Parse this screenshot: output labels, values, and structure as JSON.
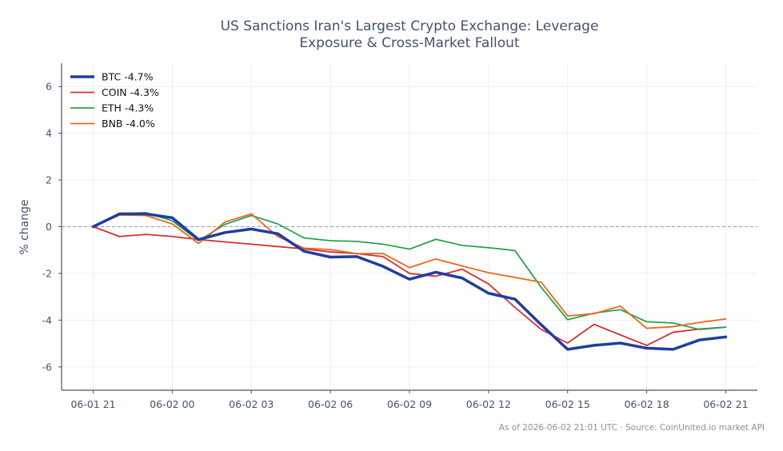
{
  "chart_data": {
    "type": "line",
    "title_lines": [
      "US Sanctions Iran's Largest Crypto Exchange: Leverage",
      "Exposure & Cross-Market Fallout"
    ],
    "xlabel": "",
    "ylabel": "% change",
    "ylim": [
      -7,
      7
    ],
    "yticks": [
      6,
      4,
      2,
      0,
      -2,
      -4,
      -6
    ],
    "xlim": [
      -1.2,
      25.2
    ],
    "xticks": [
      {
        "x": 0,
        "label": "06-01 21"
      },
      {
        "x": 3,
        "label": "06-02 00"
      },
      {
        "x": 6,
        "label": "06-02 03"
      },
      {
        "x": 9,
        "label": "06-02 06"
      },
      {
        "x": 12,
        "label": "06-02 09"
      },
      {
        "x": 15,
        "label": "06-02 12"
      },
      {
        "x": 18,
        "label": "06-02 15"
      },
      {
        "x": 21,
        "label": "06-02 18"
      },
      {
        "x": 24,
        "label": "06-02 21"
      }
    ],
    "x": [
      0,
      1,
      2,
      3,
      4,
      5,
      6,
      7,
      8,
      9,
      10,
      11,
      12,
      13,
      14,
      15,
      16,
      17,
      18,
      19,
      20,
      21,
      22,
      23,
      24
    ],
    "reference_line": 0,
    "grid": true,
    "legend_position": "top-left",
    "series": [
      {
        "name": "BTC -4.7%",
        "color": "#1f3e9e",
        "width": 3.5,
        "values": [
          0,
          0.55,
          0.55,
          0.38,
          -0.55,
          -0.25,
          -0.1,
          -0.3,
          -1.05,
          -1.3,
          -1.28,
          -1.7,
          -2.25,
          -1.95,
          -2.2,
          -2.85,
          -3.1,
          -4.2,
          -5.25,
          -5.08,
          -4.98,
          -5.2,
          -5.25,
          -4.85,
          -4.72
        ]
      },
      {
        "name": "COIN -4.3%",
        "color": "#d63031",
        "width": 1.8,
        "values": [
          0,
          -0.42,
          -0.33,
          -0.42,
          -0.55,
          -0.65,
          -0.75,
          -0.85,
          -0.95,
          -1.08,
          -1.15,
          -1.28,
          -2.0,
          -2.12,
          -1.82,
          -2.45,
          -3.45,
          -4.4,
          -4.98,
          -4.18,
          -4.63,
          -5.08,
          -4.52,
          -4.38,
          -4.3
        ]
      },
      {
        "name": "ETH -4.3%",
        "color": "#27a350",
        "width": 1.8,
        "values": [
          0,
          0.55,
          0.6,
          0.25,
          -0.6,
          0.1,
          0.48,
          0.12,
          -0.48,
          -0.6,
          -0.63,
          -0.75,
          -0.96,
          -0.54,
          -0.8,
          -0.9,
          -1.02,
          -2.6,
          -3.98,
          -3.7,
          -3.55,
          -4.07,
          -4.12,
          -4.4,
          -4.3
        ]
      },
      {
        "name": "BNB -4.0%",
        "color": "#e8681b",
        "width": 1.8,
        "values": [
          0,
          0.5,
          0.48,
          0.12,
          -0.72,
          0.2,
          0.55,
          -0.42,
          -0.92,
          -0.98,
          -1.15,
          -1.15,
          -1.75,
          -1.38,
          -1.68,
          -1.97,
          -2.17,
          -2.38,
          -3.82,
          -3.72,
          -3.4,
          -4.35,
          -4.28,
          -4.1,
          -3.95
        ]
      }
    ]
  },
  "footer": {
    "note": "As of 2026-06-02 21:01 UTC · Source: CoinUnited.io market API"
  }
}
